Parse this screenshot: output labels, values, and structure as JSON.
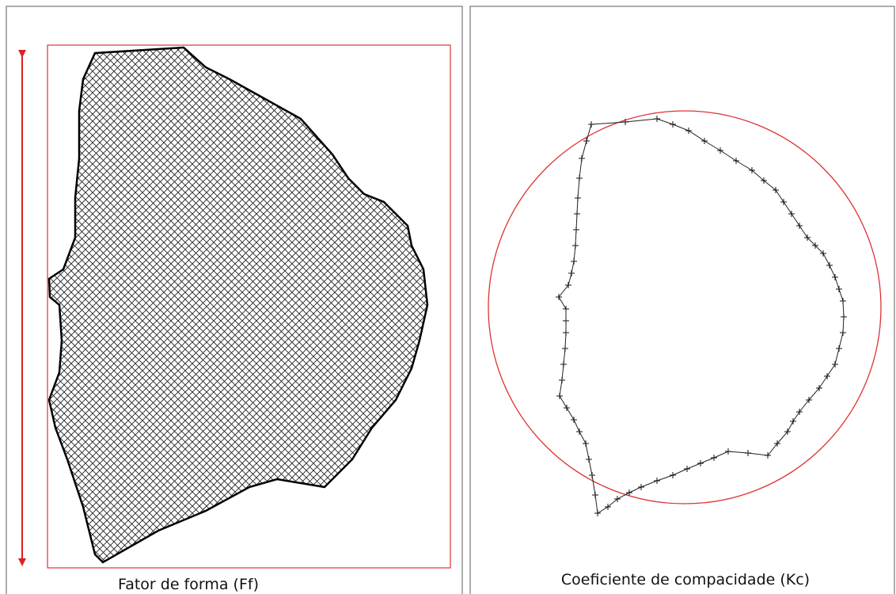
{
  "panels": [
    {
      "caption": "Fator de forma (Ff)"
    },
    {
      "caption": "Coeficiente de compacidade (Kc)"
    }
  ]
}
